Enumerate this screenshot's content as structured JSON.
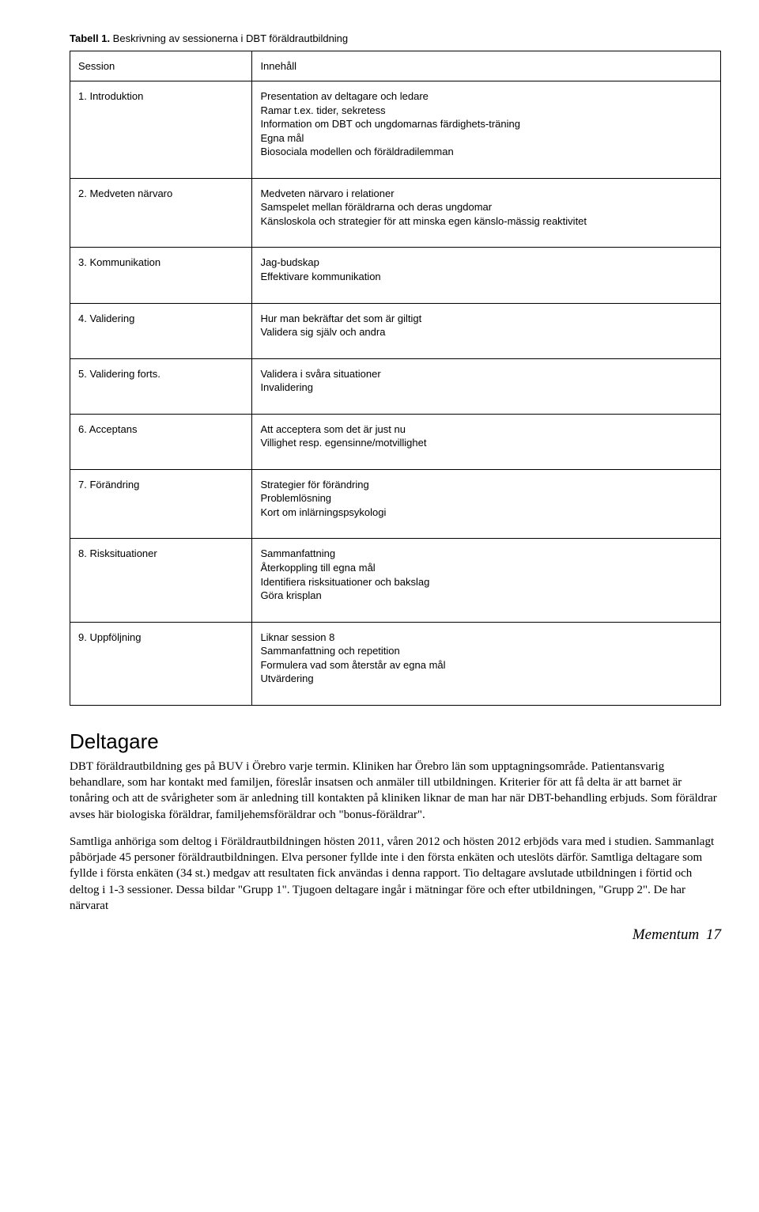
{
  "tableTitle": {
    "bold": "Tabell 1.",
    "rest": " Beskrivning av sessionerna i DBT föräldrautbildning"
  },
  "header": {
    "session": "Session",
    "content": "Innehåll"
  },
  "rows": [
    {
      "session": "1. Introduktion",
      "lines": [
        "Presentation av deltagare och ledare",
        "Ramar t.ex. tider, sekretess",
        "Information om DBT och ungdomarnas färdighets-träning",
        "Egna mål",
        "Biosociala modellen och föräldradilemman"
      ]
    },
    {
      "session": "2. Medveten närvaro",
      "lines": [
        "Medveten närvaro i relationer",
        "Samspelet mellan föräldrarna och deras ungdomar",
        "Känsloskola och strategier för att minska egen känslo-mässig reaktivitet"
      ]
    },
    {
      "session": "3. Kommunikation",
      "lines": [
        "Jag-budskap",
        "Effektivare kommunikation"
      ]
    },
    {
      "session": "4. Validering",
      "lines": [
        "Hur man bekräftar det som är giltigt",
        "Validera sig själv och andra"
      ]
    },
    {
      "session": "5. Validering forts.",
      "lines": [
        "Validera i svåra situationer",
        "Invalidering"
      ]
    },
    {
      "session": "6. Acceptans",
      "lines": [
        "Att acceptera som det är just nu",
        "Villighet resp. egensinne/motvillighet"
      ]
    },
    {
      "session": "7. Förändring",
      "lines": [
        "Strategier för förändring",
        "Problemlösning",
        "Kort om inlärningspsykologi"
      ]
    },
    {
      "session": "8. Risksituationer",
      "lines": [
        "Sammanfattning",
        "Återkoppling till egna mål",
        "Identifiera risksituationer och bakslag",
        "Göra krisplan"
      ]
    },
    {
      "session": "9. Uppföljning",
      "lines": [
        "Liknar session 8",
        "Sammanfattning och repetition",
        "Formulera vad som återstår av egna mål",
        "Utvärdering"
      ]
    }
  ],
  "sectionHeading": "Deltagare",
  "paragraphs": [
    "DBT föräldrautbildning ges på BUV i Örebro varje termin. Kliniken har Örebro län som upptagningsområde. Patientansvarig behandlare, som har kontakt med familjen, föreslår insatsen och anmäler till utbildningen. Kriterier för att få delta är att barnet är tonåring och att de svårigheter som är anledning till kontakten på kliniken liknar de man har när DBT-behandling erbjuds. Som föräldrar avses här biologiska föräldrar, familjehemsföräldrar och \"bonus-föräldrar\".",
    "Samtliga anhöriga som deltog i Föräldrautbildningen hösten 2011, våren 2012 och hösten 2012 erbjöds vara med i studien. Sammanlagt påbörjade 45 personer föräldrautbildningen. Elva personer fyllde inte i den första enkäten och uteslöts därför. Samtliga deltagare som fyllde i första enkäten (34 st.) medgav att resultaten fick användas i denna rapport. Tio deltagare avslutade utbildningen i förtid och deltog i 1-3 sessioner. Dessa bildar \"Grupp 1\". Tjugoen deltagare ingår i mätningar före och efter utbildningen, \"Grupp 2\". De har närvarat"
  ],
  "footer": {
    "label": "Mementum",
    "page": "17"
  }
}
